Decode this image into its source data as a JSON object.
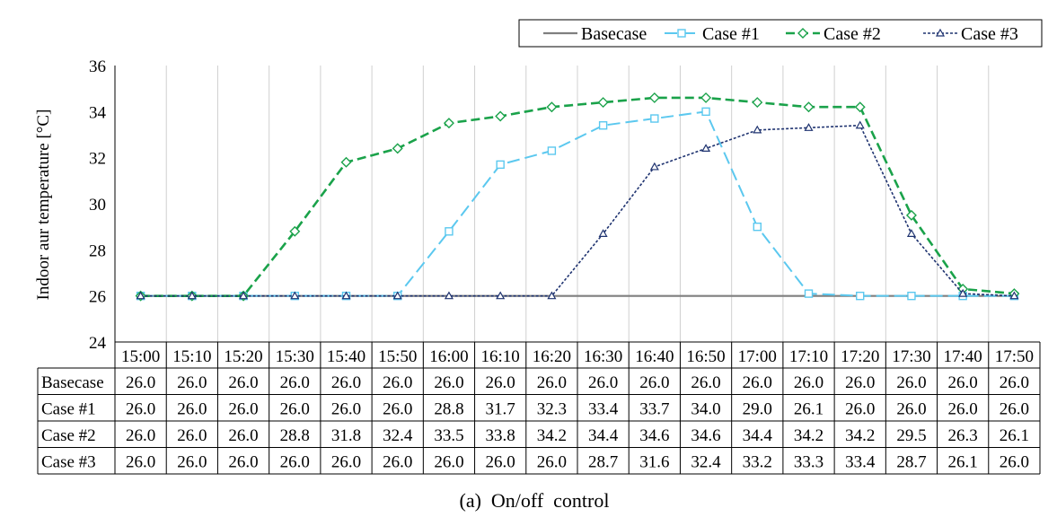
{
  "chart_data": {
    "type": "line",
    "title": "",
    "xlabel": "",
    "ylabel": "Indoor aur temperature [°C]",
    "ylim": [
      24,
      36
    ],
    "yticks": [
      "24",
      "26",
      "28",
      "30",
      "32",
      "34",
      "36"
    ],
    "grid": "vertical",
    "legend_position": "top-right",
    "categories": [
      "15:00",
      "15:10",
      "15:20",
      "15:30",
      "15:40",
      "15:50",
      "16:00",
      "16:10",
      "16:20",
      "16:30",
      "16:40",
      "16:50",
      "17:00",
      "17:10",
      "17:20",
      "17:30",
      "17:40",
      "17:50"
    ],
    "series": [
      {
        "name": "Basecase",
        "color": "#7f7f7f",
        "style": "solid",
        "marker": "none",
        "values": [
          26.0,
          26.0,
          26.0,
          26.0,
          26.0,
          26.0,
          26.0,
          26.0,
          26.0,
          26.0,
          26.0,
          26.0,
          26.0,
          26.0,
          26.0,
          26.0,
          26.0,
          26.0
        ],
        "labels": [
          "26.0",
          "26.0",
          "26.0",
          "26.0",
          "26.0",
          "26.0",
          "26.0",
          "26.0",
          "26.0",
          "26.0",
          "26.0",
          "26.0",
          "26.0",
          "26.0",
          "26.0",
          "26.0",
          "26.0",
          "26.0"
        ]
      },
      {
        "name": "Case #1",
        "color": "#5bc8ef",
        "style": "longdash",
        "marker": "square",
        "values": [
          26.0,
          26.0,
          26.0,
          26.0,
          26.0,
          26.0,
          28.8,
          31.7,
          32.3,
          33.4,
          33.7,
          34.0,
          29.0,
          26.1,
          26.0,
          26.0,
          26.0,
          26.0
        ],
        "labels": [
          "26.0",
          "26.0",
          "26.0",
          "26.0",
          "26.0",
          "26.0",
          "28.8",
          "31.7",
          "32.3",
          "33.4",
          "33.7",
          "34.0",
          "29.0",
          "26.1",
          "26.0",
          "26.0",
          "26.0",
          "26.0"
        ]
      },
      {
        "name": "Case #2",
        "color": "#1aa24a",
        "style": "dash",
        "marker": "diamond",
        "values": [
          26.0,
          26.0,
          26.0,
          28.8,
          31.8,
          32.4,
          33.5,
          33.8,
          34.2,
          34.4,
          34.6,
          34.6,
          34.4,
          34.2,
          34.2,
          29.5,
          26.3,
          26.1
        ],
        "labels": [
          "26.0",
          "26.0",
          "26.0",
          "28.8",
          "31.8",
          "32.4",
          "33.5",
          "33.8",
          "34.2",
          "34.4",
          "34.6",
          "34.6",
          "34.4",
          "34.2",
          "34.2",
          "29.5",
          "26.3",
          "26.1"
        ]
      },
      {
        "name": "Case #3",
        "color": "#1f3370",
        "style": "dot",
        "marker": "triangle",
        "values": [
          26.0,
          26.0,
          26.0,
          26.0,
          26.0,
          26.0,
          26.0,
          26.0,
          26.0,
          28.7,
          31.6,
          32.4,
          33.2,
          33.3,
          33.4,
          28.7,
          26.1,
          26.0
        ],
        "labels": [
          "26.0",
          "26.0",
          "26.0",
          "26.0",
          "26.0",
          "26.0",
          "26.0",
          "26.0",
          "26.0",
          "28.7",
          "31.6",
          "32.4",
          "33.2",
          "33.3",
          "33.4",
          "28.7",
          "26.1",
          "26.0"
        ]
      }
    ],
    "caption": "(a)  On/off  control"
  }
}
